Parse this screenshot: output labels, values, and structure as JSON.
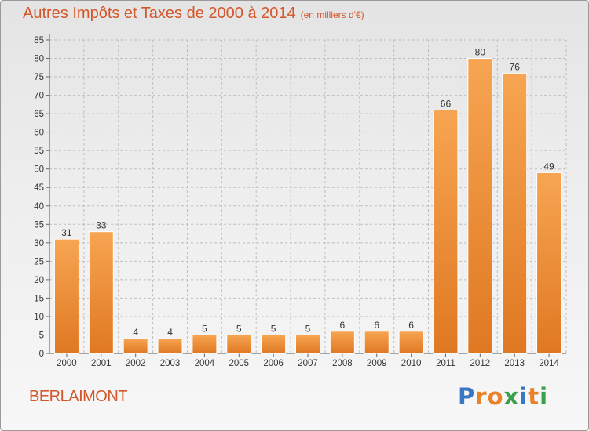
{
  "header": {
    "title": "Autres Impôts et Taxes de 2000 à 2014",
    "subtitle": "(en milliers d'€)"
  },
  "footer": {
    "commune": "BERLAIMONT",
    "logo": "Proxiti"
  },
  "colors": {
    "title": "#d4562a",
    "bar_light": "#f7a552",
    "bar_dark": "#e07822"
  },
  "chart_data": {
    "type": "bar",
    "title": "Autres Impôts et Taxes de 2000 à 2014",
    "subtitle": "(en milliers d'€)",
    "categories": [
      "2000",
      "2001",
      "2002",
      "2003",
      "2004",
      "2005",
      "2006",
      "2007",
      "2008",
      "2009",
      "2010",
      "2011",
      "2012",
      "2013",
      "2014"
    ],
    "values": [
      31,
      33,
      4,
      4,
      5,
      5,
      5,
      5,
      6,
      6,
      6,
      66,
      80,
      76,
      49
    ],
    "ylim": [
      0,
      85
    ],
    "yticks": [
      0,
      5,
      10,
      15,
      20,
      25,
      30,
      35,
      40,
      45,
      50,
      55,
      60,
      65,
      70,
      75,
      80,
      85
    ],
    "grid": true,
    "data_labels": true
  }
}
